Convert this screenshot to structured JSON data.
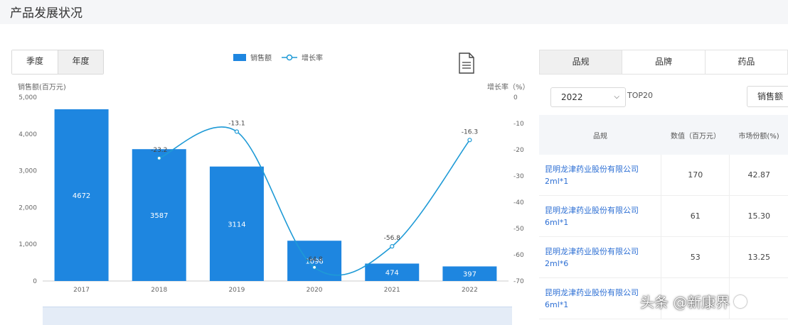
{
  "page": {
    "title": "产品发展状况"
  },
  "period_toggle": {
    "quarter": "季度",
    "year": "年度"
  },
  "legend": {
    "bar": "销售额",
    "line": "增长率"
  },
  "icons": {
    "export": "document-icon",
    "dropdown": "chevron-down-icon",
    "watermark": "logo-icon"
  },
  "colors": {
    "bar": "#1e86e0",
    "line": "#1e9ad6",
    "link": "#2d6fd4"
  },
  "chart_data": {
    "type": "bar",
    "categories": [
      "2017",
      "2018",
      "2019",
      "2020",
      "2021",
      "2022"
    ],
    "series": [
      {
        "name": "销售额",
        "values": [
          4672,
          3587,
          3114,
          1096,
          474,
          397
        ],
        "labels": [
          "4672",
          "3587",
          "3114",
          "1096",
          "474",
          "397"
        ],
        "axis": "left"
      },
      {
        "name": "增长率",
        "type": "line",
        "values": [
          null,
          -23.2,
          -13.1,
          -64.8,
          -56.8,
          -16.3
        ],
        "labels": [
          "",
          "-23.2",
          "-13.1",
          "-64.8",
          "-56.8",
          "-16.3"
        ],
        "axis": "right"
      }
    ],
    "y_left": {
      "title": "销售额(百万元)",
      "ticks": [
        "0",
        "1,000",
        "2,000",
        "3,000",
        "4,000",
        "5,000"
      ],
      "range": [
        0,
        5000
      ]
    },
    "y_right": {
      "title": "增长率（%）",
      "ticks": [
        "0",
        "-10",
        "-20",
        "-30",
        "-40",
        "-50",
        "-60",
        "-70"
      ],
      "range": [
        -70,
        0
      ]
    }
  },
  "right_panel": {
    "tabs": [
      "品规",
      "品牌",
      "药品"
    ],
    "year_select": "2022",
    "top_label": "TOP20",
    "sort_button": "销售额",
    "columns": [
      "品规",
      "数值（百万元）",
      "市场份额(%)"
    ],
    "rows": [
      {
        "name": "昆明龙津药业股份有限公司 2ml*1",
        "value": "170",
        "share": "42.87"
      },
      {
        "name": "昆明龙津药业股份有限公司 6ml*1",
        "value": "61",
        "share": "15.30"
      },
      {
        "name": "昆明龙津药业股份有限公司 2ml*6",
        "value": "53",
        "share": "13.25"
      },
      {
        "name": "昆明龙津药业股份有限公司 6ml*1",
        "value": "",
        "share": ""
      }
    ]
  },
  "watermark": "头条 @新康界"
}
